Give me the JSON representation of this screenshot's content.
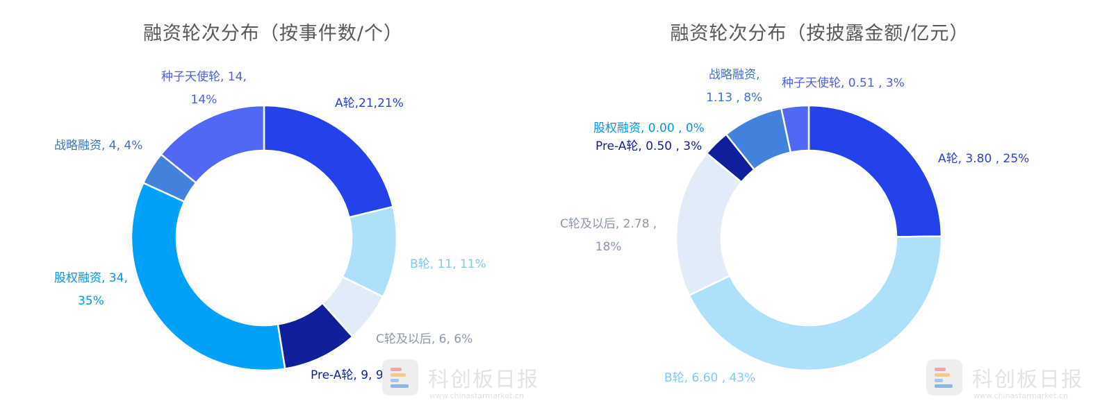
{
  "chart_data": [
    {
      "type": "pie",
      "donut": true,
      "title": "融资轮次分布（按事件数/个）",
      "slices": [
        {
          "name": "A轮",
          "value": 21,
          "percent": "21%",
          "color": "#2541eb",
          "label_lines": [
            "A轮,21,21%"
          ]
        },
        {
          "name": "B轮",
          "value": 11,
          "percent": "11%",
          "color": "#aee0fc",
          "label_lines": [
            "B轮, 11, 11%"
          ]
        },
        {
          "name": "C轮及以后",
          "value": 6,
          "percent": "6%",
          "color": "#e2ecf9",
          "label_lines": [
            "C轮及以后, 6, 6%"
          ]
        },
        {
          "name": "Pre-A轮",
          "value": 9,
          "percent": "9%",
          "color": "#0f1f99",
          "label_lines": [
            "Pre-A轮, 9, 9%"
          ]
        },
        {
          "name": "股权融资",
          "value": 34,
          "percent": "35%",
          "color": "#00a1f9",
          "label_lines": [
            "股权融资, 34,",
            "35%"
          ]
        },
        {
          "name": "战略融资",
          "value": 4,
          "percent": "4%",
          "color": "#4282dd",
          "label_lines": [
            "战略融资, 4, 4%"
          ]
        },
        {
          "name": "种子天使轮",
          "value": 14,
          "percent": "14%",
          "color": "#5168f4",
          "label_lines": [
            "种子天使轮, 14,",
            "14%"
          ]
        }
      ]
    },
    {
      "type": "pie",
      "donut": true,
      "title": "融资轮次分布（按披露金额/亿元）",
      "slices": [
        {
          "name": "A轮",
          "value": 3.8,
          "percent": "25%",
          "color": "#2541eb",
          "label_lines": [
            "A轮, 3.80 , 25%"
          ]
        },
        {
          "name": "B轮",
          "value": 6.6,
          "percent": "43%",
          "color": "#aee0fc",
          "label_lines": [
            "B轮, 6.60 , 43%"
          ]
        },
        {
          "name": "C轮及以后",
          "value": 2.78,
          "percent": "18%",
          "color": "#e2ecf9",
          "label_lines": [
            "C轮及以后, 2.78 ,",
            "18%"
          ]
        },
        {
          "name": "股权融资",
          "value": 0.0,
          "percent": "0%",
          "color": "#00a1f9",
          "label_lines": [
            "股权融资, 0.00 , 0%"
          ]
        },
        {
          "name": "Pre-A轮",
          "value": 0.5,
          "percent": "3%",
          "color": "#0f1f99",
          "label_lines": [
            "Pre-A轮, 0.50 , 3%"
          ]
        },
        {
          "name": "战略融资",
          "value": 1.13,
          "percent": "8%",
          "color": "#4282dd",
          "label_lines": [
            "战略融资,",
            "1.13 , 8%"
          ]
        },
        {
          "name": "种子天使轮",
          "value": 0.51,
          "percent": "3%",
          "color": "#5168f4",
          "label_lines": [
            "种子天使轮, 0.51 , 3%"
          ]
        }
      ]
    }
  ],
  "label_colors": {
    "A轮": "#2a3fd6",
    "B轮": "#7fcaf5",
    "C轮及以后": "#8a99ad",
    "Pre-A轮": "#0f1f99",
    "股权融资": "#0096ef",
    "战略融资": "#3d72c9",
    "种子天使轮": "#4a5fe6"
  },
  "watermark": {
    "title": "科创板日报",
    "url": "www.chinastarmarket.cn",
    "bar_colors": [
      "#f0a6a6",
      "#f4c98f",
      "#a9c4ee",
      "#8fb3e8"
    ]
  }
}
